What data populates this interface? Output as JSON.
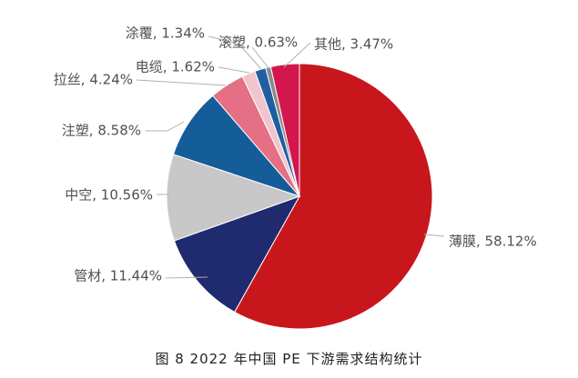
{
  "caption": "图 8  2022 年中国 PE 下游需求结构统计",
  "chart_data": {
    "type": "pie",
    "title": "",
    "start_angle_deg": 0,
    "direction": "clockwise",
    "slices": [
      {
        "name": "薄膜",
        "value": 58.12,
        "label": "薄膜, 58.12%",
        "color": "#c8161d"
      },
      {
        "name": "管材",
        "value": 11.44,
        "label": "管材, 11.44%",
        "color": "#1f2a6f"
      },
      {
        "name": "中空",
        "value": 10.56,
        "label": "中空, 10.56%",
        "color": "#c8c8c8"
      },
      {
        "name": "注塑",
        "value": 8.58,
        "label": "注塑, 8.58%",
        "color": "#155d99"
      },
      {
        "name": "拉丝",
        "value": 4.24,
        "label": "拉丝, 4.24%",
        "color": "#e56f84"
      },
      {
        "name": "电缆",
        "value": 1.62,
        "label": "电缆, 1.62%",
        "color": "#f2c4cd"
      },
      {
        "name": "涂覆",
        "value": 1.34,
        "label": "涂覆, 1.34%",
        "color": "#1f5fa0"
      },
      {
        "name": "滚塑",
        "value": 0.63,
        "label": "滚塑, 0.63%",
        "color": "#8a8a8a"
      },
      {
        "name": "其他",
        "value": 3.47,
        "label": "其他, 3.47%",
        "color": "#d4164e"
      }
    ]
  }
}
